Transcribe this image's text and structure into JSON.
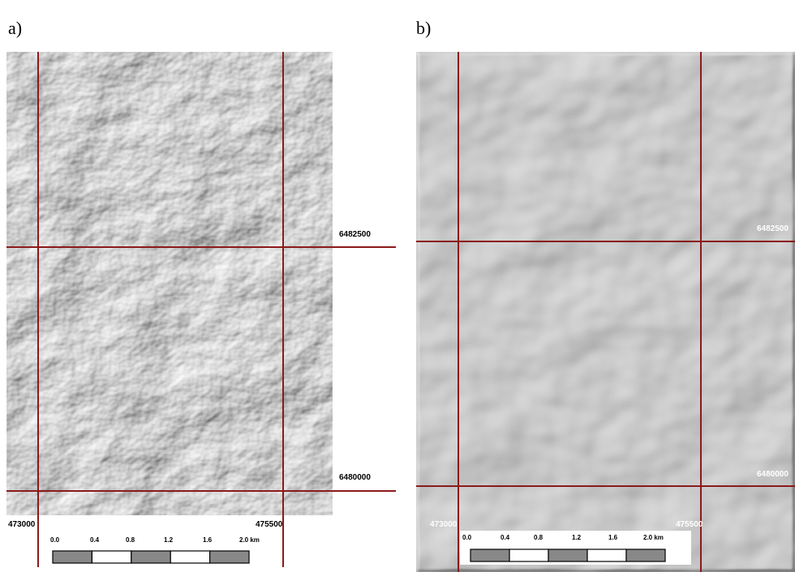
{
  "panels": [
    {
      "label": "a)",
      "northings": [
        "6482500",
        "6480000"
      ],
      "eastings": [
        "473000",
        "475500"
      ],
      "scale": [
        "0.0",
        "0.4",
        "0.8",
        "1.2",
        "1.6",
        "2.0 km"
      ]
    },
    {
      "label": "b)",
      "northings": [
        "6482500",
        "6480000"
      ],
      "eastings": [
        "473000",
        "475500"
      ],
      "scale": [
        "0.0",
        "0.4",
        "0.8",
        "1.2",
        "1.6",
        "2.0 km"
      ]
    }
  ]
}
